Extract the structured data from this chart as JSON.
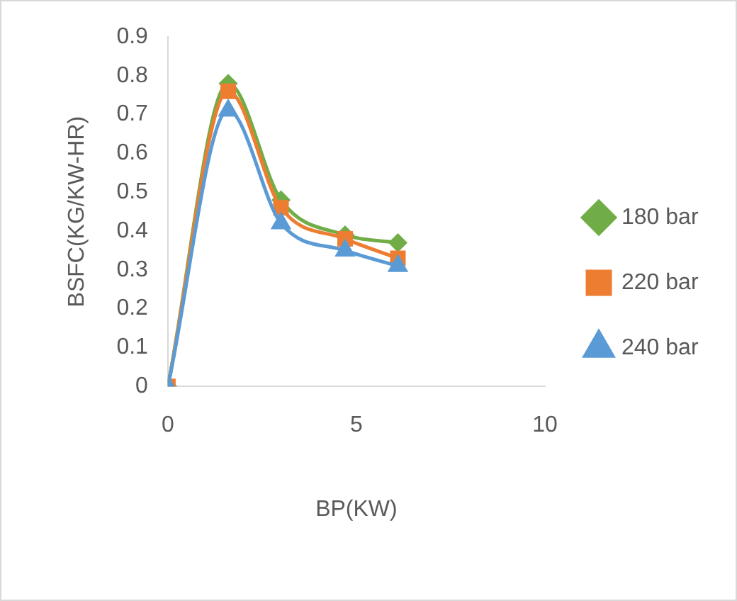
{
  "chart_data": {
    "type": "line",
    "xlabel": "BP(KW)",
    "ylabel": "BSFC(KG/KW-HR)",
    "x": [
      0,
      1.6,
      3.0,
      4.7,
      6.1
    ],
    "series": [
      {
        "name": "180 bar",
        "color": "#70ad47",
        "marker": "diamond",
        "values": [
          0,
          0.78,
          0.48,
          0.39,
          0.37
        ]
      },
      {
        "name": "220 bar",
        "color": "#ed7d31",
        "marker": "square",
        "values": [
          0,
          0.76,
          0.46,
          0.38,
          0.33
        ]
      },
      {
        "name": "240 bar",
        "color": "#5b9bd5",
        "marker": "triangle",
        "values": [
          0,
          0.71,
          0.42,
          0.35,
          0.31
        ]
      }
    ],
    "xlim": [
      0,
      10
    ],
    "xticks": [
      0,
      5,
      10
    ],
    "ylim": [
      0,
      0.9
    ],
    "yticks": [
      0,
      0.1,
      0.2,
      0.3,
      0.4,
      0.5,
      0.6,
      0.7,
      0.8,
      0.9
    ],
    "grid": false,
    "legend": "right"
  }
}
